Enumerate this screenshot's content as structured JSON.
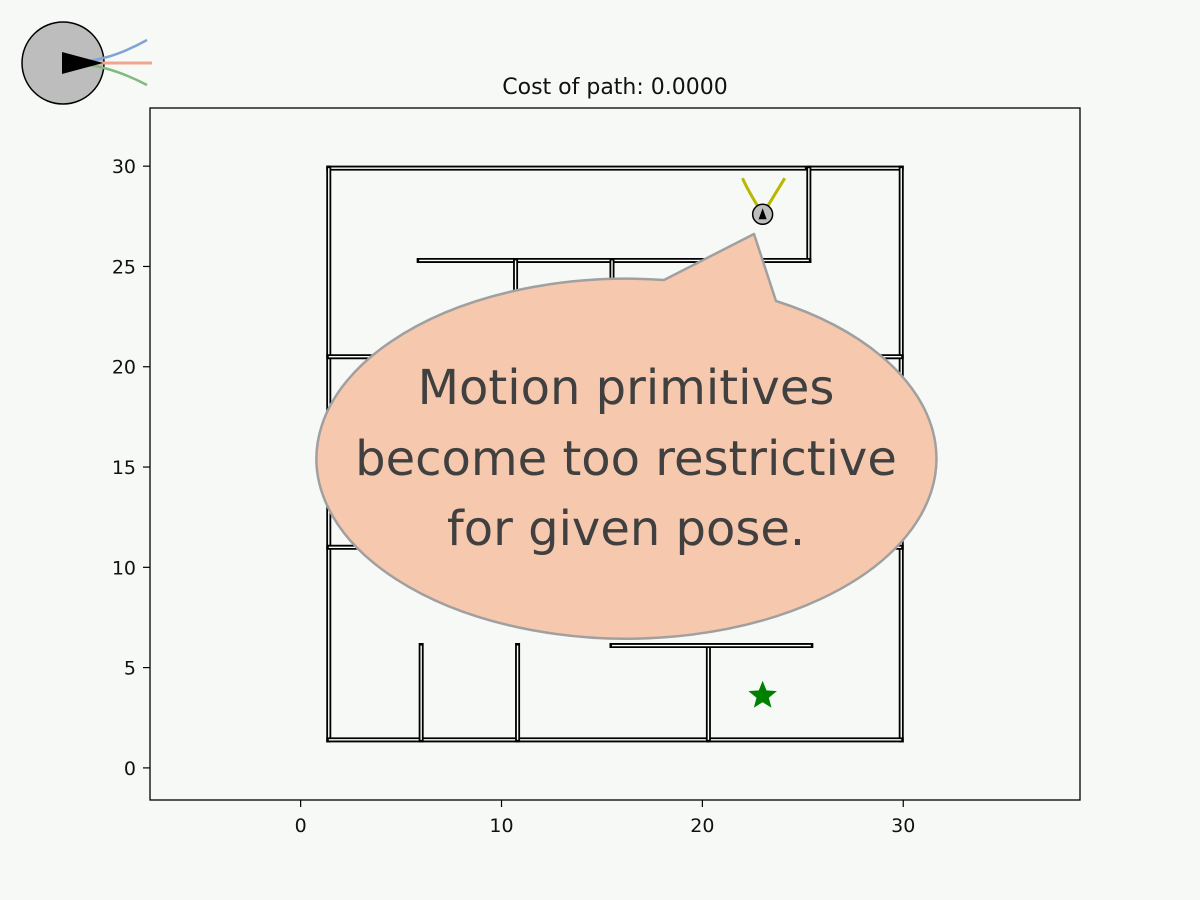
{
  "colors": {
    "background": "#f7f9f7",
    "walls": "#000000",
    "wall_gap": "#ffffff",
    "robot_fill": "#bdbdbd",
    "primitive_left": "#7fa4d4",
    "primitive_straight": "#f2a58e",
    "primitive_right": "#7fba7f",
    "primitive_active": "#b8b800",
    "goal": "#008000",
    "callout_fill": "#f6c8ad",
    "callout_border": "#a0a0a0",
    "callout_text": "#404040"
  },
  "icons": {
    "robot_preview": "robot-motion-primitives-icon",
    "robot_marker": "robot-icon",
    "goal_marker": "star-icon"
  },
  "chart_data": {
    "type": "scatter",
    "title": "Cost of path: 0.0000",
    "xlim": [
      -7.5,
      38.8
    ],
    "ylim": [
      -1.6,
      32.9
    ],
    "x_ticks": [
      "0",
      "10",
      "20",
      "30"
    ],
    "y_ticks": [
      "0",
      "5",
      "10",
      "15",
      "20",
      "25",
      "30"
    ],
    "x_tick_values": [
      0,
      10,
      20,
      30
    ],
    "y_tick_values": [
      0,
      5,
      10,
      15,
      20,
      25,
      30
    ],
    "grid": false,
    "maze_walls": [
      [
        [
          1.4,
          29.9
        ],
        [
          25.1,
          29.9
        ]
      ],
      [
        [
          25.4,
          29.9
        ],
        [
          29.9,
          29.9
        ]
      ],
      [
        [
          1.4,
          1.4
        ],
        [
          1.4,
          29.9
        ]
      ],
      [
        [
          29.9,
          1.4
        ],
        [
          29.9,
          29.9
        ]
      ],
      [
        [
          1.4,
          1.4
        ],
        [
          29.9,
          1.4
        ]
      ],
      [
        [
          25.3,
          25.3
        ],
        [
          25.3,
          29.9
        ]
      ],
      [
        [
          5.9,
          25.3
        ],
        [
          25.3,
          25.3
        ]
      ],
      [
        [
          10.7,
          21
        ],
        [
          10.7,
          25.3
        ]
      ],
      [
        [
          15.5,
          21
        ],
        [
          15.5,
          25.3
        ]
      ],
      [
        [
          1.4,
          20.5
        ],
        [
          29.9,
          20.5
        ]
      ],
      [
        [
          1.4,
          11
        ],
        [
          29.9,
          11
        ]
      ],
      [
        [
          6,
          1.4
        ],
        [
          6,
          6.1
        ]
      ],
      [
        [
          10.8,
          1.4
        ],
        [
          10.8,
          6.1
        ]
      ],
      [
        [
          20.3,
          1.4
        ],
        [
          20.3,
          6.1
        ]
      ],
      [
        [
          15.5,
          6.1
        ],
        [
          25.4,
          6.1
        ]
      ]
    ],
    "robot": {
      "x": 23,
      "y": 27.6,
      "heading_deg": 90
    },
    "goal": {
      "x": 23,
      "y": 3.6
    },
    "active_primitives": [
      [
        [
          23,
          27.6
        ],
        [
          22.2,
          28.9
        ],
        [
          22.0,
          29.4
        ]
      ],
      [
        [
          23,
          27.6
        ],
        [
          23.8,
          28.9
        ],
        [
          24.1,
          29.4
        ]
      ]
    ]
  },
  "callout": {
    "lines": [
      "Motion primitives",
      "become too restrictive",
      "for given pose."
    ]
  }
}
